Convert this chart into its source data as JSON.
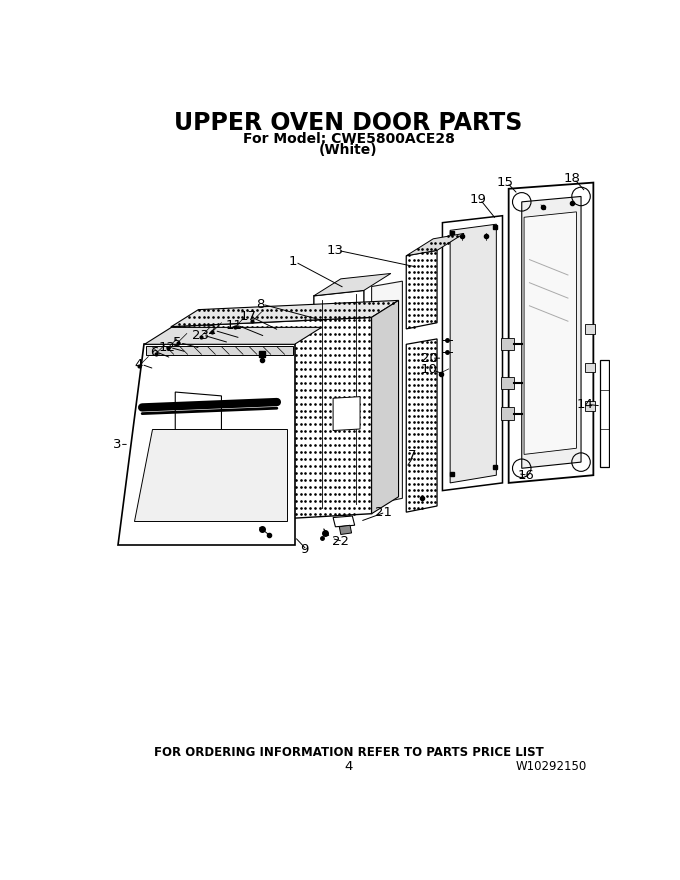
{
  "title": "UPPER OVEN DOOR PARTS",
  "subtitle1": "For Model: CWE5800ACE28",
  "subtitle2": "(White)",
  "footer_center": "FOR ORDERING INFORMATION REFER TO PARTS PRICE LIST",
  "footer_page": "4",
  "footer_right": "W10292150",
  "bg_color": "#ffffff",
  "title_fontsize": 17,
  "subtitle_fontsize": 10,
  "footer_fontsize": 8.5
}
